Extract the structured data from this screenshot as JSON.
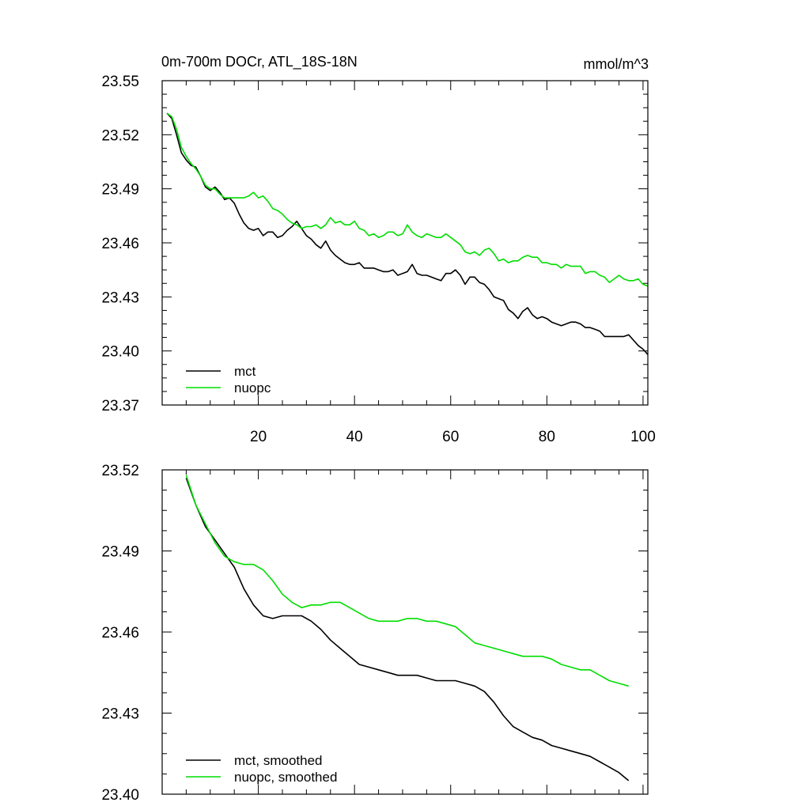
{
  "chart_data": [
    {
      "type": "line",
      "title_left": "0m-700m DOCr, ATL_18S-18N",
      "title_right": "mmol/m^3",
      "xlim": [
        0,
        101
      ],
      "ylim": [
        23.37,
        23.55
      ],
      "x_ticks": [
        20,
        40,
        60,
        80,
        100
      ],
      "x_tick_labels": [
        "20",
        "40",
        "60",
        "80",
        "100"
      ],
      "y_ticks": [
        23.37,
        23.4,
        23.43,
        23.46,
        23.49,
        23.52,
        23.55
      ],
      "y_tick_labels": [
        "23.37",
        "23.40",
        "23.43",
        "23.46",
        "23.49",
        "23.52",
        "23.55"
      ],
      "legend_placement": "bottom-left",
      "series": [
        {
          "name": "mct",
          "color": "#000000",
          "x": [
            1,
            2,
            3,
            4,
            5,
            6,
            7,
            8,
            9,
            10,
            11,
            12,
            13,
            14,
            15,
            16,
            17,
            18,
            19,
            20,
            21,
            22,
            23,
            24,
            25,
            26,
            27,
            28,
            29,
            30,
            31,
            32,
            33,
            34,
            35,
            36,
            37,
            38,
            39,
            40,
            41,
            42,
            43,
            44,
            45,
            46,
            47,
            48,
            49,
            50,
            51,
            52,
            53,
            54,
            55,
            56,
            57,
            58,
            59,
            60,
            61,
            62,
            63,
            64,
            65,
            66,
            67,
            68,
            69,
            70,
            71,
            72,
            73,
            74,
            75,
            76,
            77,
            78,
            79,
            80,
            81,
            82,
            83,
            84,
            85,
            86,
            87,
            88,
            89,
            90,
            91,
            92,
            93,
            94,
            95,
            96,
            97,
            98,
            99,
            100,
            101
          ],
          "values": [
            23.532,
            23.529,
            23.52,
            23.51,
            23.506,
            23.503,
            23.502,
            23.497,
            23.491,
            23.489,
            23.491,
            23.488,
            23.484,
            23.485,
            23.482,
            23.476,
            23.471,
            23.468,
            23.467,
            23.468,
            23.464,
            23.466,
            23.466,
            23.463,
            23.464,
            23.467,
            23.469,
            23.472,
            23.468,
            23.464,
            23.462,
            23.459,
            23.457,
            23.461,
            23.456,
            23.453,
            23.451,
            23.449,
            23.448,
            23.448,
            23.449,
            23.446,
            23.446,
            23.446,
            23.445,
            23.444,
            23.444,
            23.445,
            23.442,
            23.443,
            23.444,
            23.448,
            23.443,
            23.442,
            23.442,
            23.441,
            23.44,
            23.439,
            23.443,
            23.443,
            23.445,
            23.442,
            23.437,
            23.441,
            23.441,
            23.438,
            23.437,
            23.434,
            23.43,
            23.429,
            23.428,
            23.423,
            23.421,
            23.418,
            23.422,
            23.424,
            23.42,
            23.418,
            23.419,
            23.418,
            23.416,
            23.415,
            23.414,
            23.415,
            23.416,
            23.416,
            23.415,
            23.413,
            23.413,
            23.412,
            23.411,
            23.408,
            23.408,
            23.408,
            23.408,
            23.408,
            23.409,
            23.406,
            23.403,
            23.401,
            23.398
          ]
        },
        {
          "name": "nuopc",
          "color": "#00dd00",
          "x": [
            1,
            2,
            3,
            4,
            5,
            6,
            7,
            8,
            9,
            10,
            11,
            12,
            13,
            14,
            15,
            16,
            17,
            18,
            19,
            20,
            21,
            22,
            23,
            24,
            25,
            26,
            27,
            28,
            29,
            30,
            31,
            32,
            33,
            34,
            35,
            36,
            37,
            38,
            39,
            40,
            41,
            42,
            43,
            44,
            45,
            46,
            47,
            48,
            49,
            50,
            51,
            52,
            53,
            54,
            55,
            56,
            57,
            58,
            59,
            60,
            61,
            62,
            63,
            64,
            65,
            66,
            67,
            68,
            69,
            70,
            71,
            72,
            73,
            74,
            75,
            76,
            77,
            78,
            79,
            80,
            81,
            82,
            83,
            84,
            85,
            86,
            87,
            88,
            89,
            90,
            91,
            92,
            93,
            94,
            95,
            96,
            97,
            98,
            99,
            100,
            101
          ],
          "values": [
            23.532,
            23.53,
            23.523,
            23.513,
            23.508,
            23.504,
            23.501,
            23.497,
            23.492,
            23.49,
            23.49,
            23.487,
            23.485,
            23.485,
            23.485,
            23.485,
            23.485,
            23.486,
            23.488,
            23.485,
            23.486,
            23.483,
            23.479,
            23.478,
            23.476,
            23.473,
            23.471,
            23.47,
            23.468,
            23.469,
            23.469,
            23.47,
            23.468,
            23.47,
            23.474,
            23.471,
            23.472,
            23.47,
            23.47,
            23.472,
            23.468,
            23.467,
            23.464,
            23.465,
            23.463,
            23.464,
            23.466,
            23.466,
            23.464,
            23.465,
            23.47,
            23.466,
            23.464,
            23.463,
            23.465,
            23.464,
            23.463,
            23.463,
            23.465,
            23.463,
            23.461,
            23.459,
            23.455,
            23.454,
            23.455,
            23.453,
            23.456,
            23.457,
            23.454,
            23.45,
            23.451,
            23.449,
            23.45,
            23.45,
            23.452,
            23.453,
            23.452,
            23.452,
            23.449,
            23.449,
            23.448,
            23.448,
            23.446,
            23.448,
            23.447,
            23.447,
            23.447,
            23.443,
            23.444,
            23.444,
            23.442,
            23.441,
            23.438,
            23.44,
            23.442,
            23.44,
            23.439,
            23.439,
            23.44,
            23.437,
            23.436
          ]
        }
      ]
    },
    {
      "type": "line",
      "xlim": [
        0,
        101
      ],
      "ylim": [
        23.4,
        23.52
      ],
      "x_ticks": [
        20,
        40,
        60,
        80,
        100
      ],
      "y_ticks": [
        23.4,
        23.43,
        23.46,
        23.49,
        23.52
      ],
      "y_tick_labels": [
        "23.40",
        "23.43",
        "23.46",
        "23.49",
        "23.52"
      ],
      "legend_placement": "bottom-left",
      "series": [
        {
          "name": "mct, smoothed",
          "color": "#000000",
          "x": [
            5,
            7,
            9,
            11,
            13,
            15,
            17,
            19,
            21,
            23,
            25,
            27,
            29,
            31,
            33,
            35,
            37,
            39,
            41,
            43,
            45,
            47,
            49,
            51,
            53,
            55,
            57,
            59,
            61,
            63,
            65,
            67,
            69,
            71,
            73,
            75,
            77,
            79,
            81,
            83,
            85,
            87,
            89,
            91,
            93,
            95,
            97
          ],
          "values": [
            23.517,
            23.507,
            23.499,
            23.494,
            23.489,
            23.484,
            23.476,
            23.47,
            23.466,
            23.465,
            23.466,
            23.466,
            23.466,
            23.464,
            23.461,
            23.457,
            23.454,
            23.451,
            23.448,
            23.447,
            23.446,
            23.445,
            23.444,
            23.444,
            23.444,
            23.443,
            23.442,
            23.442,
            23.442,
            23.441,
            23.44,
            23.438,
            23.434,
            23.429,
            23.425,
            23.423,
            23.421,
            23.42,
            23.418,
            23.417,
            23.416,
            23.415,
            23.414,
            23.412,
            23.41,
            23.408,
            23.405
          ]
        },
        {
          "name": "nuopc, smoothed",
          "color": "#00dd00",
          "x": [
            5,
            7,
            9,
            11,
            13,
            15,
            17,
            19,
            21,
            23,
            25,
            27,
            29,
            31,
            33,
            35,
            37,
            39,
            41,
            43,
            45,
            47,
            49,
            51,
            53,
            55,
            57,
            59,
            61,
            63,
            65,
            67,
            69,
            71,
            73,
            75,
            77,
            79,
            81,
            83,
            85,
            87,
            89,
            91,
            93,
            95,
            97
          ],
          "values": [
            23.518,
            23.507,
            23.5,
            23.493,
            23.488,
            23.486,
            23.485,
            23.485,
            23.483,
            23.479,
            23.474,
            23.471,
            23.469,
            23.47,
            23.47,
            23.471,
            23.471,
            23.469,
            23.467,
            23.465,
            23.464,
            23.464,
            23.464,
            23.465,
            23.465,
            23.464,
            23.464,
            23.463,
            23.462,
            23.459,
            23.456,
            23.455,
            23.454,
            23.453,
            23.452,
            23.451,
            23.451,
            23.451,
            23.45,
            23.448,
            23.447,
            23.446,
            23.446,
            23.444,
            23.442,
            23.441,
            23.44
          ]
        }
      ]
    }
  ]
}
